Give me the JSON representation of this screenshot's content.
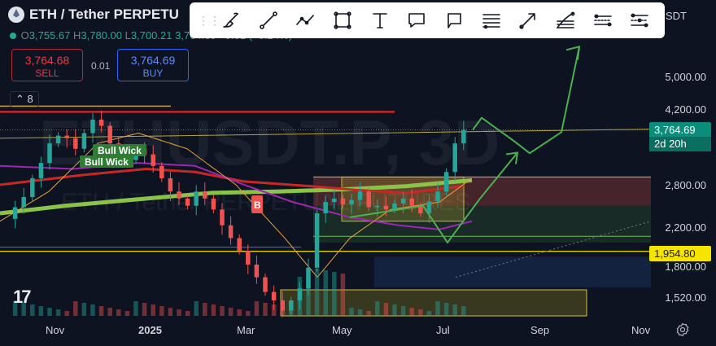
{
  "header": {
    "symbol": "ETH / Tether PERPETU",
    "ohlc": {
      "o_label": "O",
      "o": "3,755.67",
      "h_label": "H",
      "h": "3,780.00",
      "l_label": "L",
      "l": "3,700.21",
      "c_tail": "3,764.69 +9.02 (+0.24%)"
    },
    "sell": {
      "price": "3,764.68",
      "label": "SELL"
    },
    "spread": "0.01",
    "buy": {
      "price": "3,764.69",
      "label": "BUY"
    },
    "indicators_count": "8",
    "currency_fragment": "SDT"
  },
  "toolbar": {
    "items": [
      {
        "name": "drag-handle-icon"
      },
      {
        "name": "brush-icon"
      },
      {
        "name": "trend-line-icon"
      },
      {
        "name": "polyline-icon"
      },
      {
        "name": "rectangle-icon"
      },
      {
        "name": "text-icon"
      },
      {
        "name": "callout-icon"
      },
      {
        "name": "note-icon"
      },
      {
        "name": "horizontal-lines-icon"
      },
      {
        "name": "arrow-icon"
      },
      {
        "name": "fib-retracement-icon"
      },
      {
        "name": "parallel-channel-icon"
      },
      {
        "name": "regression-trend-icon"
      }
    ]
  },
  "watermark": {
    "line1": "ETHUSDT.P, 3D",
    "line2": "ETH / Tether PERPETUAL FUTURES"
  },
  "chart_data": {
    "type": "candlestick",
    "interval": "3D",
    "x_ticks": [
      "Nov",
      "2025",
      "Mar",
      "May",
      "Jul",
      "Sep",
      "Nov"
    ],
    "y_ticks": [
      "5,000.00",
      "4,200.00",
      "2,800.00",
      "2,200.00",
      "1,800.00",
      "1,520.00"
    ],
    "y_scale": "log",
    "last_price": "3,764.69",
    "countdown": "2d 20h",
    "level_label": "1,954.80",
    "annotations": {
      "bull_wick_1": "Bull Wick",
      "bull_wick_2": "Bull Wick",
      "marker": "B"
    },
    "price_path": [
      2330,
      2480,
      2620,
      2900,
      3150,
      3500,
      3650,
      3600,
      3400,
      3700,
      3980,
      3850,
      3500,
      3300,
      3200,
      3400,
      3300,
      3100,
      2900,
      2700,
      2600,
      2500,
      2700,
      2600,
      2450,
      2250,
      2100,
      1960,
      1820,
      1700,
      1570,
      1500,
      1420,
      1500,
      1600,
      1790,
      2400,
      2550,
      2600,
      2520,
      2580,
      2700,
      2480,
      2500,
      2450,
      2530,
      2600,
      2500,
      2400,
      2560,
      2700,
      3000,
      3500,
      3764.69
    ],
    "projection": [
      3764.69,
      4000,
      3550,
      3320,
      3720,
      5600
    ],
    "colors": {
      "up": "#26a69a",
      "down": "#ef5350",
      "projection": "#4caf50",
      "level": "#f5e400",
      "ma_long": "#8bc34a",
      "ma_mid": "#c62828",
      "ma_short": "#9c27b0"
    }
  }
}
